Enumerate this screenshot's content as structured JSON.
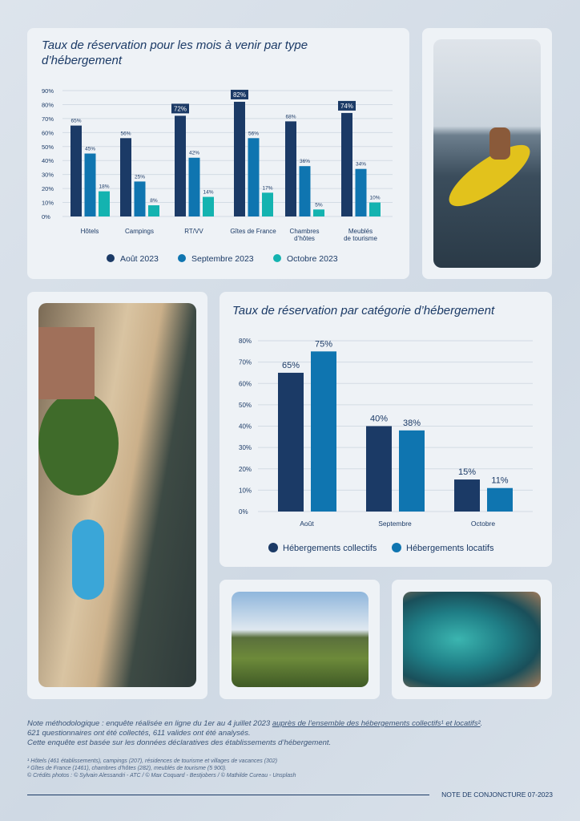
{
  "colors": {
    "navy": "#1b3a66",
    "blue": "#0f75b0",
    "teal": "#14b3b0"
  },
  "chart_data": [
    {
      "type": "bar",
      "title": "Taux de réservation pour les mois à venir par type d’hébergement",
      "categories": [
        "Hôtels",
        "Campings",
        "RT/VV",
        "Gîtes de France",
        "Chambres d’hôtes",
        "Meublés de tourisme"
      ],
      "category_lines": [
        [
          "Hôtels"
        ],
        [
          "Campings"
        ],
        [
          "RT/VV"
        ],
        [
          "Gîtes de France"
        ],
        [
          "Chambres",
          "d’hôtes"
        ],
        [
          "Meublés",
          "de tourisme"
        ]
      ],
      "series": [
        {
          "name": "Août 2023",
          "values": [
            65,
            56,
            72,
            82,
            68,
            74
          ]
        },
        {
          "name": "Septembre 2023",
          "values": [
            45,
            25,
            42,
            56,
            36,
            34
          ]
        },
        {
          "name": "Octobre 2023",
          "values": [
            18,
            8,
            14,
            17,
            5,
            10
          ]
        }
      ],
      "highlighted": [
        [
          false,
          false,
          true,
          true,
          false,
          true
        ],
        [
          false,
          false,
          false,
          false,
          false,
          false
        ],
        [
          false,
          false,
          false,
          false,
          false,
          false
        ]
      ],
      "yticks": [
        "0%",
        "10%",
        "20%",
        "30%",
        "40%",
        "50%",
        "60%",
        "70%",
        "80%",
        "90%"
      ],
      "ylim": [
        0,
        90
      ],
      "grid": true,
      "legend": "bottom"
    },
    {
      "type": "bar",
      "title": "Taux de réservation par catégorie d’hébergement",
      "categories": [
        "Août",
        "Septembre",
        "Octobre"
      ],
      "series": [
        {
          "name": "Hébergements collectifs",
          "values": [
            65,
            40,
            15
          ]
        },
        {
          "name": "Hébergements locatifs",
          "values": [
            75,
            38,
            11
          ]
        }
      ],
      "yticks": [
        "0%",
        "10%",
        "20%",
        "30%",
        "40%",
        "50%",
        "60%",
        "70%",
        "80%"
      ],
      "ylim": [
        0,
        80
      ],
      "grid": true,
      "legend": "bottom"
    }
  ],
  "footer": {
    "note_line1": "Note méthodologique : enquête réalisée en ligne du 1er au 4 juillet 2023 ",
    "note_link": "auprès de l’ensemble des hébergements collectifs¹ et locatifs²",
    "note_line2": "621 questionnaires ont été collectés, 611 valides ont été analysés.",
    "note_line3": "Cette enquête est basée sur les données déclaratives des établissements d’hébergement.",
    "fn1": "¹ Hôtels (461 établissements), campings (207), résidences de tourisme et villages de vacances (302)",
    "fn2": "² Gîtes de France (1461), chambres d’hôtes (282), meublés de tourisme (5 900).",
    "credits": "© Crédits photos : © Sylvain Alessandri - ATC / © Max Coquard - Bestjobers / © Mathilde Cureau - Unsplash",
    "doc_label": "NOTE DE CONJONCTURE 07-2023"
  }
}
